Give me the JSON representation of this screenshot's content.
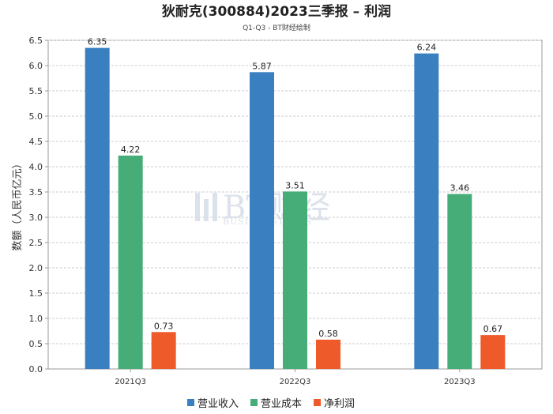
{
  "chart_data": {
    "type": "bar",
    "title": "狄耐克(300884)2023三季报 – 利润",
    "subtitle": "Q1-Q3 - BT财经绘制",
    "xlabel": "",
    "ylabel": "数额（人民币亿元）",
    "ylim": [
      0,
      6.5
    ],
    "yticks": [
      "0.0",
      "0.5",
      "1.0",
      "1.5",
      "2.0",
      "2.5",
      "3.0",
      "3.5",
      "4.0",
      "4.5",
      "5.0",
      "5.5",
      "6.0",
      "6.5"
    ],
    "categories": [
      "2021Q3",
      "2022Q3",
      "2023Q3"
    ],
    "series": [
      {
        "name": "营业收入",
        "color": "#3a80c1",
        "values": [
          6.35,
          5.87,
          6.24
        ],
        "labels": [
          "6.35",
          "5.87",
          "6.24"
        ]
      },
      {
        "name": "营业成本",
        "color": "#46ad78",
        "values": [
          4.22,
          3.51,
          3.46
        ],
        "labels": [
          "4.22",
          "3.51",
          "3.46"
        ]
      },
      {
        "name": "净利润",
        "color": "#ee5a2a",
        "values": [
          0.73,
          0.58,
          0.67
        ],
        "labels": [
          "0.73",
          "0.58",
          "0.67"
        ]
      }
    ],
    "grid": true,
    "legend": "bottom-center"
  },
  "watermark": {
    "brand": "BT财经",
    "sub": "BUSINESSTIMES"
  }
}
